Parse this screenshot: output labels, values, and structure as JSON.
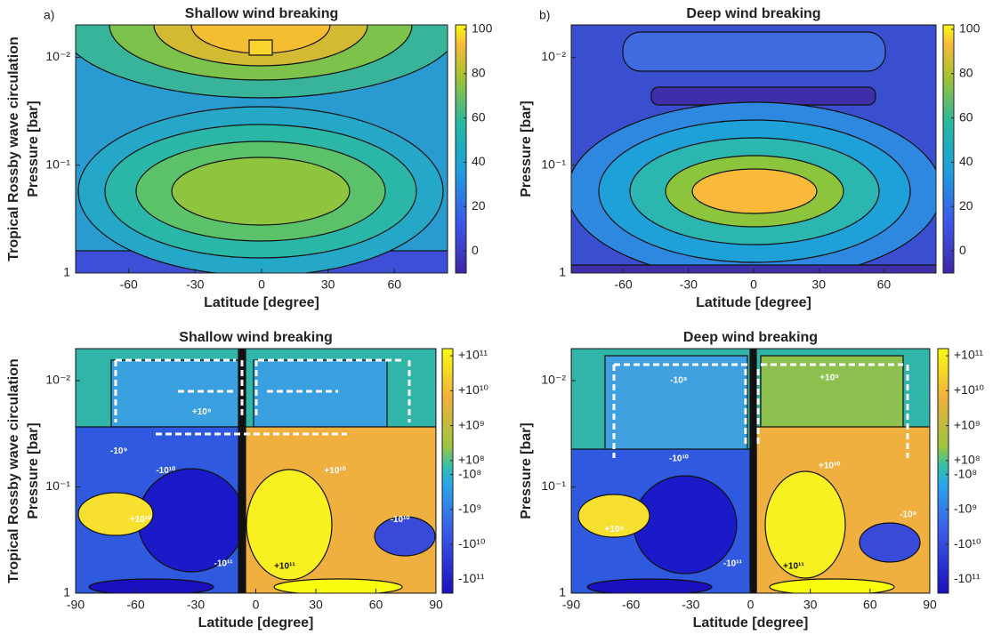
{
  "chart_data": [
    {
      "type": "contour",
      "panel_label": "a)",
      "title": "Shallow wind breaking",
      "x_label": "Latitude [degree]",
      "y_label": "Pressure [bar]",
      "side_label": "Tropical Rossby wave circulation",
      "xlim": [
        -84,
        84
      ],
      "xticks": [
        -60,
        -30,
        0,
        30,
        60
      ],
      "ylim": [
        0.005,
        1
      ],
      "y_log": true,
      "y_reversed": true,
      "yticks": [
        {
          "value": 0.01,
          "label": "10⁻²"
        },
        {
          "value": 0.1,
          "label": "10⁻¹"
        },
        1
      ],
      "clim": [
        -10,
        102
      ],
      "color_scale": "linear",
      "cticks": [
        100,
        80,
        60,
        40,
        20,
        0
      ]
    },
    {
      "type": "contour",
      "panel_label": "b)",
      "title": "Deep wind breaking",
      "x_label": "Latitude [degree]",
      "y_label": "Pressure [bar]",
      "xlim": [
        -84,
        84
      ],
      "xticks": [
        -60,
        -30,
        0,
        30,
        60
      ],
      "ylim": [
        0.005,
        1
      ],
      "y_log": true,
      "y_reversed": true,
      "yticks": [
        {
          "value": 0.01,
          "label": "10⁻²"
        },
        {
          "value": 0.1,
          "label": "10⁻¹"
        },
        1
      ],
      "clim": [
        -10,
        102
      ],
      "color_scale": "linear",
      "cticks": [
        100,
        80,
        60,
        40,
        20,
        0
      ]
    },
    {
      "type": "contour",
      "title": "Shallow wind breaking",
      "x_label": "Latitude [degree]",
      "y_label": "Pressure [bar]",
      "side_label": "Tropical Rossby wave circulation",
      "xlim": [
        -90,
        90
      ],
      "xticks": [
        -90,
        -60,
        -30,
        0,
        30,
        60,
        90
      ],
      "ylim": [
        0.005,
        1
      ],
      "y_log": true,
      "y_reversed": true,
      "yticks": [
        {
          "value": 0.01,
          "label": "10⁻²"
        },
        {
          "value": 0.1,
          "label": "10⁻¹"
        },
        1
      ],
      "clim": [
        -250000000000,
        160000000000
      ],
      "color_scale": "symlog",
      "cticks": [
        {
          "value": 100000000000,
          "label": "+10¹¹"
        },
        {
          "value": 10000000000,
          "label": "+10¹⁰"
        },
        {
          "value": 1000000000,
          "label": "+10⁹"
        },
        {
          "value": 100000000,
          "label": "+10⁸"
        },
        {
          "value": -100000000,
          "label": "-10⁸"
        },
        {
          "value": -1000000000,
          "label": "-10⁹"
        },
        {
          "value": -10000000000,
          "label": "-10¹⁰"
        },
        {
          "value": -100000000000,
          "label": "-10¹¹"
        }
      ],
      "annotations": [
        "-10¹⁰",
        "+10¹⁰",
        "-10¹¹",
        "+10¹¹",
        "+10¹⁰",
        "-10¹⁰",
        "-10⁹",
        "+10⁹"
      ]
    },
    {
      "type": "contour",
      "title": "Deep wind breaking",
      "x_label": "Latitude [degree]",
      "y_label": "Pressure [bar]",
      "xlim": [
        -90,
        90
      ],
      "xticks": [
        -90,
        -60,
        -30,
        0,
        30,
        60,
        90
      ],
      "ylim": [
        0.005,
        1
      ],
      "y_log": true,
      "y_reversed": true,
      "yticks": [
        {
          "value": 0.01,
          "label": "10⁻²"
        },
        {
          "value": 0.1,
          "label": "10⁻¹"
        },
        1
      ],
      "clim": [
        -250000000000,
        160000000000
      ],
      "color_scale": "symlog",
      "cticks": [
        {
          "value": 100000000000,
          "label": "+10¹¹"
        },
        {
          "value": 10000000000,
          "label": "+10¹⁰"
        },
        {
          "value": 1000000000,
          "label": "+10⁹"
        },
        {
          "value": 100000000,
          "label": "+10⁸"
        },
        {
          "value": -100000000,
          "label": "-10⁸"
        },
        {
          "value": -1000000000,
          "label": "-10⁹"
        },
        {
          "value": -10000000000,
          "label": "-10¹⁰"
        },
        {
          "value": -100000000000,
          "label": "-10¹¹"
        }
      ],
      "annotations": [
        "-10¹⁰",
        "+10¹⁰",
        "-10¹¹",
        "+10¹¹",
        "+10⁸",
        "-10⁹",
        "-10⁹",
        "+10⁹"
      ]
    }
  ]
}
